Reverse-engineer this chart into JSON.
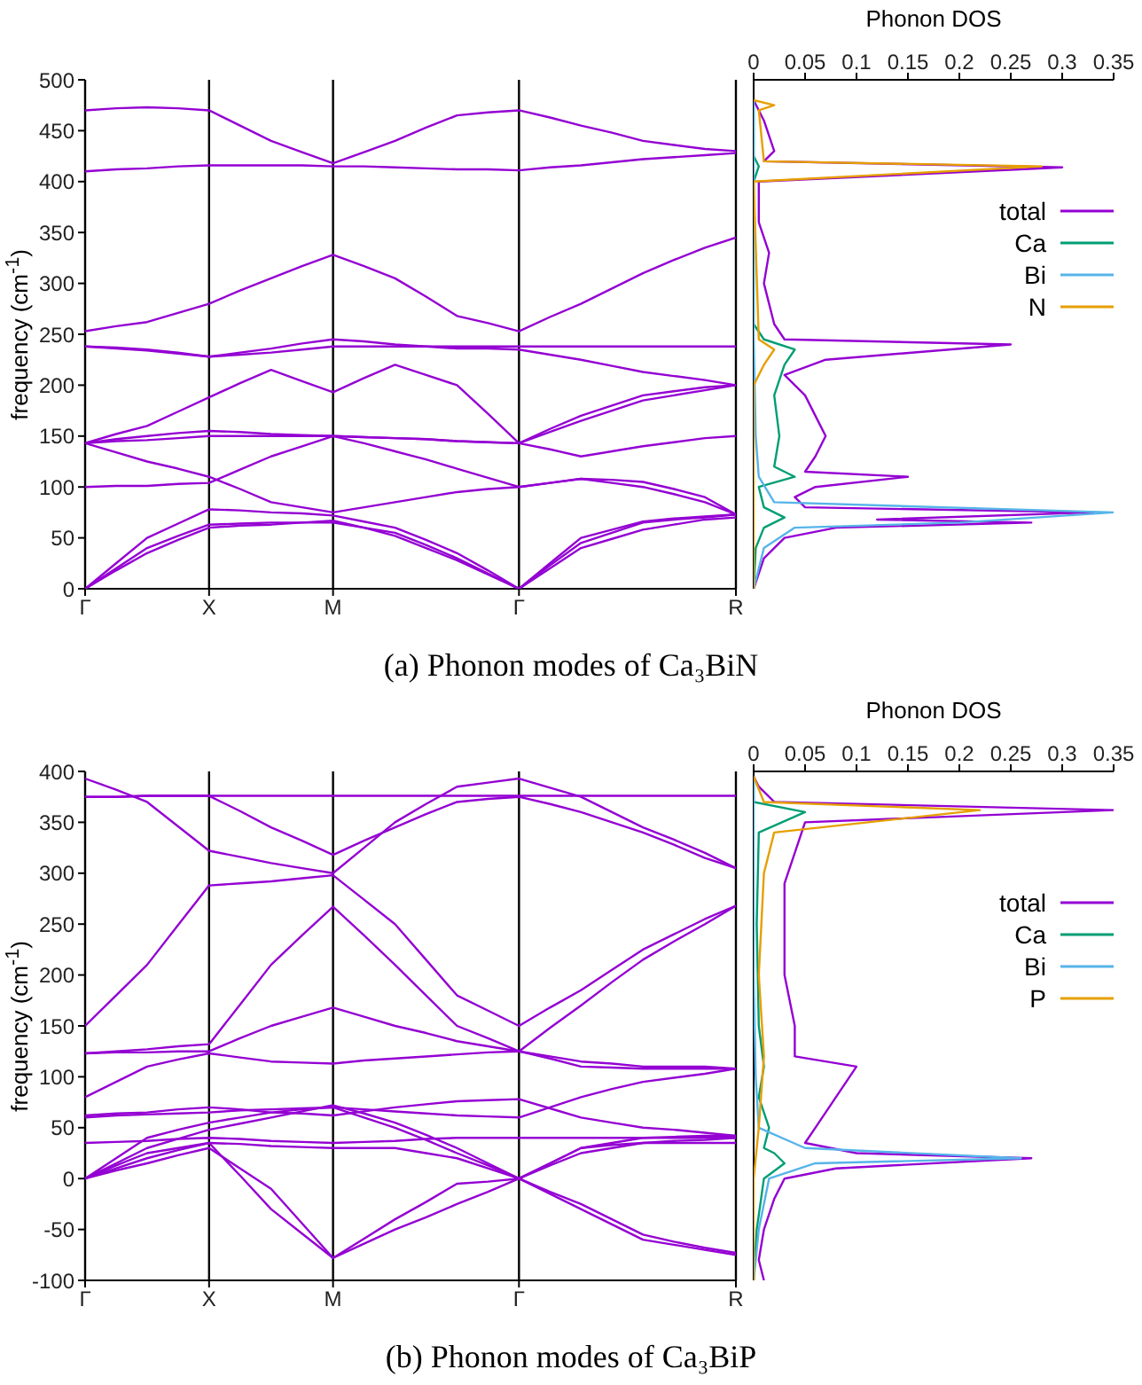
{
  "chart_data": [
    {
      "type": "line",
      "ylabel": "frequency (cm$^{-1}$)",
      "annotations": [
        "(a) Phonon modes of Ca₃BiN"
      ],
      "categories": [
        "Γ",
        null,
        null,
        null,
        "X",
        null,
        null,
        null,
        "M",
        null,
        null,
        null,
        null,
        null,
        "Γ",
        null,
        null,
        null,
        null,
        null,
        null,
        "R"
      ],
      "ylim": [
        0,
        500
      ],
      "yticks": [
        0,
        50,
        100,
        150,
        200,
        250,
        300,
        350,
        400,
        450,
        500
      ],
      "grid": "x",
      "series": [
        {
          "color": "#9400d3",
          "values": [
            470,
            472,
            473,
            472,
            470,
            455,
            440,
            429,
            418,
            429,
            440,
            453,
            465,
            468,
            470,
            463,
            455,
            448,
            440,
            436,
            432,
            430
          ]
        },
        {
          "color": "#9400d3",
          "values": [
            410,
            412,
            413,
            415,
            416,
            416,
            416,
            416,
            415,
            415,
            414,
            413,
            412,
            412,
            411,
            414,
            416,
            419,
            422,
            424,
            426,
            428
          ]
        },
        {
          "color": "#9400d3",
          "values": [
            253,
            258,
            262,
            271,
            280,
            293,
            305,
            317,
            328,
            317,
            305,
            287,
            268,
            261,
            253,
            267,
            280,
            295,
            310,
            323,
            335,
            345
          ]
        },
        {
          "color": "#9400d3",
          "values": [
            238,
            236,
            234,
            231,
            228,
            230,
            232,
            235,
            238,
            238,
            238,
            238,
            238,
            238,
            238,
            238,
            238,
            238,
            238,
            238,
            238,
            238
          ]
        },
        {
          "color": "#9400d3",
          "values": [
            238,
            237,
            235,
            232,
            228,
            232,
            236,
            241,
            245,
            243,
            240,
            238,
            236,
            236,
            235,
            230,
            225,
            219,
            213,
            209,
            205,
            200
          ]
        },
        {
          "color": "#9400d3",
          "values": [
            143,
            152,
            160,
            174,
            188,
            202,
            215,
            204,
            193,
            207,
            220,
            210,
            200,
            172,
            143,
            157,
            170,
            180,
            190,
            194,
            198,
            200
          ]
        },
        {
          "color": "#9400d3",
          "values": [
            143,
            147,
            150,
            153,
            155,
            154,
            152,
            151,
            150,
            149,
            148,
            147,
            145,
            144,
            143,
            154,
            165,
            175,
            185,
            190,
            195,
            200
          ]
        },
        {
          "color": "#9400d3",
          "values": [
            143,
            145,
            146,
            148,
            150,
            150,
            150,
            150,
            150,
            149,
            148,
            147,
            145,
            144,
            143,
            137,
            130,
            135,
            140,
            144,
            148,
            150
          ]
        },
        {
          "color": "#9400d3",
          "values": [
            100,
            101,
            101,
            103,
            104,
            117,
            130,
            140,
            150,
            143,
            135,
            127,
            118,
            109,
            100,
            104,
            108,
            107,
            105,
            98,
            90,
            73
          ]
        },
        {
          "color": "#9400d3",
          "values": [
            143,
            134,
            125,
            118,
            110,
            98,
            85,
            80,
            75,
            80,
            85,
            90,
            95,
            98,
            100,
            104,
            108,
            104,
            100,
            93,
            85,
            73
          ]
        },
        {
          "color": "#9400d3",
          "values": [
            0,
            20,
            40,
            52,
            63,
            64,
            65,
            65,
            65,
            60,
            55,
            43,
            30,
            15,
            0,
            23,
            45,
            55,
            65,
            68,
            70,
            73
          ]
        },
        {
          "color": "#9400d3",
          "values": [
            0,
            25,
            50,
            64,
            78,
            77,
            75,
            74,
            72,
            66,
            60,
            48,
            35,
            18,
            0,
            25,
            50,
            58,
            66,
            69,
            71,
            73
          ]
        },
        {
          "color": "#9400d3",
          "values": [
            0,
            18,
            35,
            48,
            60,
            62,
            63,
            65,
            67,
            60,
            52,
            40,
            28,
            14,
            0,
            20,
            40,
            49,
            58,
            63,
            68,
            70
          ]
        }
      ]
    },
    {
      "type": "line",
      "xlabel": "Phonon DOS",
      "xlim": [
        0,
        0.35
      ],
      "xticks": [
        0,
        0.05,
        0.1,
        0.15,
        0.2,
        0.25,
        0.3,
        0.35
      ],
      "ylim": [
        0,
        500
      ],
      "yticks": [
        0,
        50,
        100,
        150,
        200,
        250,
        300,
        350,
        400,
        450,
        500
      ],
      "tick_labels": "x",
      "legend": "right",
      "series": [
        {
          "name": "total",
          "color": "#9400d3",
          "x": [
            0,
            0.01,
            0.03,
            0.08,
            0.27,
            0.12,
            0.33,
            0.05,
            0.04,
            0.06,
            0.15,
            0.05,
            0.06,
            0.07,
            0.06,
            0.05,
            0.03,
            0.07,
            0.25,
            0.03,
            0.02,
            0.01,
            0.015,
            0.005,
            0.005,
            0.3,
            0.01,
            0.02,
            0.01,
            0.005,
            0
          ],
          "values": [
            0,
            30,
            50,
            60,
            65,
            68,
            75,
            80,
            90,
            100,
            110,
            115,
            130,
            150,
            170,
            190,
            210,
            225,
            240,
            245,
            260,
            300,
            330,
            360,
            400,
            414,
            420,
            430,
            460,
            470,
            480
          ]
        },
        {
          "name": "Ca",
          "color": "#009e73",
          "x": [
            0,
            0.002,
            0.01,
            0.03,
            0.01,
            0.005,
            0.04,
            0.02,
            0.025,
            0.02,
            0.03,
            0.04,
            0.01,
            0,
            0,
            0.005,
            0,
            0
          ],
          "values": [
            0,
            40,
            60,
            70,
            80,
            100,
            110,
            120,
            150,
            190,
            220,
            235,
            245,
            260,
            400,
            415,
            425,
            480
          ]
        },
        {
          "name": "Bi",
          "color": "#56b4e9",
          "x": [
            0,
            0.01,
            0.04,
            0.2,
            0.35,
            0.02,
            0.005,
            0.002,
            0,
            0
          ],
          "values": [
            0,
            40,
            60,
            65,
            75,
            85,
            110,
            150,
            250,
            480
          ]
        },
        {
          "name": "N",
          "color": "#e69f00",
          "x": [
            0,
            0,
            0.01,
            0.02,
            0.005,
            0,
            0.28,
            0.01,
            0.005,
            0.02,
            0
          ],
          "values": [
            0,
            200,
            220,
            235,
            245,
            400,
            415,
            420,
            470,
            475,
            480
          ]
        }
      ]
    },
    {
      "type": "line",
      "ylabel": "frequency (cm$^{-1}$)",
      "annotations": [
        "(b) Phonon modes of Ca₃BiP"
      ],
      "categories": [
        "Γ",
        null,
        null,
        null,
        "X",
        null,
        null,
        null,
        "M",
        null,
        null,
        null,
        null,
        null,
        "Γ",
        null,
        null,
        null,
        null,
        null,
        null,
        "R"
      ],
      "ylim": [
        -100,
        400
      ],
      "yticks": [
        -100,
        -50,
        0,
        50,
        100,
        150,
        200,
        250,
        300,
        350,
        400
      ],
      "grid": "x",
      "series": [
        {
          "color": "#9400d3",
          "values": [
            393,
            382,
            370,
            346,
            322,
            316,
            310,
            305,
            300,
            325,
            350,
            368,
            385,
            389,
            393,
            384,
            375,
            360,
            345,
            333,
            320,
            305
          ]
        },
        {
          "color": "#9400d3",
          "values": [
            375,
            375,
            376,
            376,
            376,
            376,
            376,
            376,
            376,
            376,
            376,
            376,
            376,
            376,
            376,
            376,
            376,
            376,
            376,
            376,
            376,
            376
          ]
        },
        {
          "color": "#9400d3",
          "values": [
            375,
            375,
            376,
            376,
            376,
            361,
            345,
            332,
            318,
            332,
            345,
            358,
            370,
            373,
            375,
            368,
            360,
            350,
            340,
            328,
            315,
            305
          ]
        },
        {
          "color": "#9400d3",
          "values": [
            150,
            180,
            210,
            249,
            288,
            290,
            292,
            295,
            298,
            274,
            250,
            215,
            180,
            165,
            150,
            168,
            185,
            205,
            225,
            240,
            255,
            268
          ]
        },
        {
          "color": "#9400d3",
          "values": [
            123,
            125,
            127,
            130,
            132,
            171,
            210,
            239,
            267,
            239,
            210,
            180,
            150,
            138,
            125,
            148,
            170,
            193,
            215,
            233,
            250,
            268
          ]
        },
        {
          "color": "#9400d3",
          "values": [
            123,
            124,
            124,
            125,
            125,
            138,
            150,
            159,
            168,
            159,
            150,
            143,
            135,
            130,
            125,
            120,
            115,
            113,
            110,
            110,
            110,
            108
          ]
        },
        {
          "color": "#9400d3",
          "values": [
            80,
            95,
            110,
            117,
            123,
            119,
            115,
            114,
            113,
            116,
            118,
            120,
            122,
            124,
            125,
            118,
            110,
            109,
            108,
            108,
            108,
            108
          ]
        },
        {
          "color": "#9400d3",
          "values": [
            60,
            62,
            63,
            64,
            65,
            67,
            68,
            69,
            70,
            68,
            66,
            64,
            62,
            61,
            60,
            70,
            80,
            88,
            95,
            99,
            103,
            108
          ]
        },
        {
          "color": "#9400d3",
          "values": [
            62,
            64,
            65,
            68,
            70,
            68,
            65,
            64,
            62,
            66,
            70,
            73,
            76,
            77,
            78,
            69,
            60,
            55,
            50,
            48,
            45,
            42
          ]
        },
        {
          "color": "#9400d3",
          "values": [
            35,
            36,
            37,
            39,
            40,
            39,
            37,
            36,
            35,
            36,
            37,
            39,
            40,
            40,
            40,
            40,
            40,
            40,
            40,
            40,
            40,
            40
          ]
        },
        {
          "color": "#9400d3",
          "values": [
            0,
            20,
            40,
            48,
            55,
            60,
            65,
            68,
            70,
            60,
            50,
            38,
            25,
            13,
            0,
            15,
            30,
            33,
            35,
            35,
            35,
            35
          ]
        },
        {
          "color": "#9400d3",
          "values": [
            0,
            13,
            25,
            30,
            35,
            34,
            32,
            31,
            30,
            30,
            30,
            25,
            20,
            10,
            0,
            13,
            25,
            30,
            35,
            37,
            38,
            40
          ]
        },
        {
          "color": "#9400d3",
          "values": [
            0,
            10,
            20,
            28,
            35,
            3,
            -30,
            -54,
            -78,
            -64,
            -50,
            -38,
            -25,
            -13,
            0,
            -15,
            -30,
            -45,
            -60,
            -65,
            -70,
            -75
          ]
        },
        {
          "color": "#9400d3",
          "values": [
            0,
            8,
            15,
            23,
            30,
            10,
            -10,
            -44,
            -78,
            -59,
            -40,
            -23,
            -5,
            -3,
            0,
            -13,
            -25,
            -40,
            -55,
            -62,
            -68,
            -73
          ]
        },
        {
          "color": "#9400d3",
          "values": [
            0,
            15,
            30,
            39,
            48,
            54,
            60,
            66,
            72,
            64,
            55,
            43,
            30,
            15,
            0,
            15,
            30,
            35,
            40,
            41,
            42,
            42
          ]
        }
      ]
    },
    {
      "type": "line",
      "xlabel": "Phonon DOS",
      "xlim": [
        0,
        0.35
      ],
      "xticks": [
        0,
        0.05,
        0.1,
        0.15,
        0.2,
        0.25,
        0.3,
        0.35
      ],
      "ylim": [
        -100,
        400
      ],
      "yticks": [
        -100,
        -50,
        0,
        50,
        100,
        150,
        200,
        250,
        300,
        350,
        400
      ],
      "tick_labels": "x",
      "legend": "right",
      "series": [
        {
          "name": "total",
          "color": "#9400d3",
          "x": [
            0.01,
            0.005,
            0.01,
            0.02,
            0.03,
            0.08,
            0.27,
            0.1,
            0.05,
            0.06,
            0.08,
            0.1,
            0.04,
            0.04,
            0.03,
            0.03,
            0.03,
            0.04,
            0.05,
            0.35,
            0.02,
            0.005,
            0
          ],
          "values": [
            -100,
            -80,
            -50,
            -20,
            0,
            10,
            20,
            25,
            35,
            50,
            80,
            110,
            120,
            150,
            200,
            250,
            290,
            320,
            350,
            362,
            370,
            385,
            395
          ]
        },
        {
          "name": "Ca",
          "color": "#009e73",
          "x": [
            0,
            0.003,
            0.01,
            0.03,
            0.02,
            0.01,
            0.015,
            0.005,
            0.01,
            0.005,
            0.003,
            0.005,
            0.05,
            0,
            0
          ],
          "values": [
            -100,
            -50,
            0,
            15,
            25,
            30,
            50,
            80,
            110,
            150,
            250,
            340,
            360,
            370,
            395
          ]
        },
        {
          "name": "Bi",
          "color": "#56b4e9",
          "x": [
            0,
            0.005,
            0.015,
            0.06,
            0.26,
            0.05,
            0.005,
            0.002,
            0,
            0
          ],
          "values": [
            -100,
            -50,
            0,
            15,
            20,
            30,
            50,
            100,
            200,
            395
          ]
        },
        {
          "name": "P",
          "color": "#e69f00",
          "x": [
            0,
            0,
            0.005,
            0.01,
            0.005,
            0.01,
            0.02,
            0.22,
            0.01,
            0
          ],
          "values": [
            -100,
            0,
            50,
            120,
            200,
            300,
            340,
            362,
            370,
            395
          ]
        }
      ]
    }
  ]
}
